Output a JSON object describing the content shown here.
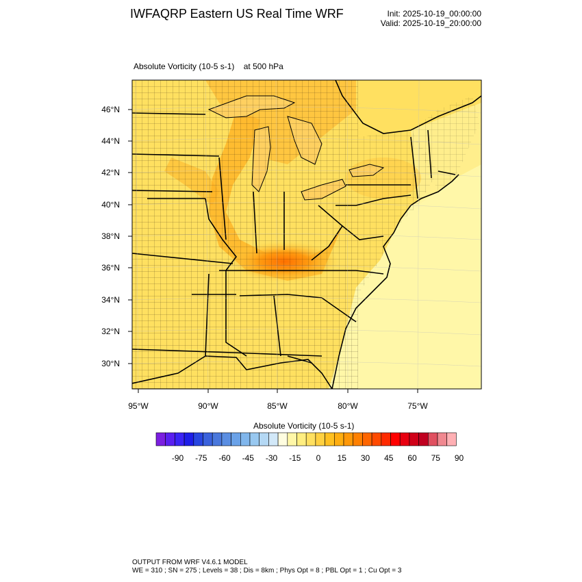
{
  "header": {
    "title": "IWFAQRP Eastern US Real Time WRF",
    "init": "Init: 2025-10-19_00:00:00",
    "valid": "Valid: 2025-10-19_20:00:00"
  },
  "plot": {
    "field_label": "Absolute Vorticity   (10-5 s-1)",
    "level_label": "at   500 hPa",
    "lat_labels": [
      "46°N",
      "44°N",
      "42°N",
      "40°N",
      "38°N",
      "36°N",
      "34°N",
      "32°N",
      "30°N"
    ],
    "lon_labels": [
      "95°W",
      "90°W",
      "85°W",
      "80°W",
      "75°W"
    ],
    "max_feature": "vorticity maximum over Kentucky / Tennessee"
  },
  "colorbar": {
    "title": "Absolute Vorticity  (10-5 s-1)",
    "labels": [
      "-90",
      "-75",
      "-60",
      "-45",
      "-30",
      "-15",
      "0",
      "15",
      "30",
      "45",
      "60",
      "75",
      "90"
    ],
    "colors": [
      "#7b1fe0",
      "#5a1ff0",
      "#3b24f5",
      "#1e1ee8",
      "#2846e0",
      "#3a62dc",
      "#4a78dc",
      "#5a8ee2",
      "#6aa2e8",
      "#80b6ec",
      "#98c8f0",
      "#b4d8f4",
      "#d2e8f8",
      "#fffde0",
      "#fff7a8",
      "#ffee80",
      "#ffe060",
      "#ffd040",
      "#ffc020",
      "#ffae10",
      "#ff9808",
      "#ff8000",
      "#ff6600",
      "#ff4a00",
      "#ff2a00",
      "#ff0000",
      "#e80010",
      "#d00018",
      "#c00020",
      "#e05060",
      "#f08890",
      "#ffb0b4"
    ]
  },
  "footer": {
    "line1": "OUTPUT FROM WRF V4.6.1 MODEL",
    "line2": "WE = 310 ; SN = 275 ; Levels = 38 ; Dis = 8km ; Phys Opt = 8 ; PBL Opt = 1 ; Cu Opt = 3"
  }
}
